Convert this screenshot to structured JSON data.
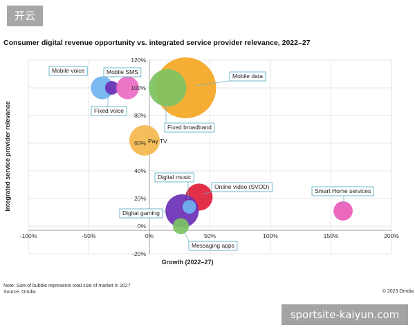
{
  "site_badge": "开云",
  "watermark": "sportsite-kaiyun.com",
  "footer": {
    "note": "Note: Size of bubble represents total size of market in 2027",
    "source": "Source: Omdia",
    "copyright": "© 2023 Omdia"
  },
  "chart_data": {
    "type": "scatter",
    "title": "Consumer digital revenue opportunity vs. integrated service provider relevance, 2022–27",
    "xlabel": "Growth (2022–27)",
    "ylabel": "Integrated service provider relevance",
    "xlim": [
      -100,
      200
    ],
    "ylim": [
      -20,
      120
    ],
    "x_ticks": [
      -100,
      -50,
      0,
      50,
      100,
      150,
      200
    ],
    "y_ticks": [
      -20,
      0,
      20,
      40,
      60,
      80,
      100,
      120
    ],
    "tick_suffix": "%",
    "grid": true,
    "points": [
      {
        "name": "Mobile data",
        "x": 30,
        "y": 100,
        "size": 100,
        "color": "#f5a623"
      },
      {
        "name": "Fixed broadband",
        "x": 15,
        "y": 100,
        "size": 38,
        "color": "#7dc363"
      },
      {
        "name": "Mobile voice",
        "x": -39,
        "y": 100,
        "size": 14,
        "color": "#6fb3f0"
      },
      {
        "name": "Fixed voice",
        "x": -31,
        "y": 100,
        "size": 5,
        "color": "#6a2fb5"
      },
      {
        "name": "Mobile SMS",
        "x": -18,
        "y": 100,
        "size": 14,
        "color": "#ea6bc3"
      },
      {
        "name": "Pay TV",
        "x": -4,
        "y": 62,
        "size": 25,
        "color": "#f5b94d"
      },
      {
        "name": "Online video (SVOD)",
        "x": 41,
        "y": 21,
        "size": 20,
        "color": "#e01e3a"
      },
      {
        "name": "Digital gaming",
        "x": 27,
        "y": 11,
        "size": 30,
        "color": "#6a2fb5"
      },
      {
        "name": "Digital music",
        "x": 33,
        "y": 14,
        "size": 5,
        "color": "#6fb3f0"
      },
      {
        "name": "Messaging apps",
        "x": 26,
        "y": 0,
        "size": 7,
        "color": "#7dc363"
      },
      {
        "name": "Smart Home services",
        "x": 160,
        "y": 11,
        "size": 10,
        "color": "#ea5bb8"
      }
    ],
    "annotations": [
      {
        "text": "Mobile voice",
        "target": "Mobile voice"
      },
      {
        "text": "Mobile SMS",
        "target": "Mobile SMS"
      },
      {
        "text": "Mobile data",
        "target": "Mobile data"
      },
      {
        "text": "Fixed voice",
        "target": "Fixed voice"
      },
      {
        "text": "Fixed broadband",
        "target": "Fixed broadband"
      },
      {
        "text": "Pay TV",
        "target": "Pay TV"
      },
      {
        "text": "Digital music",
        "target": "Digital music"
      },
      {
        "text": "Online video (SVOD)",
        "target": "Online video (SVOD)"
      },
      {
        "text": "Digital gaming",
        "target": "Digital gaming"
      },
      {
        "text": "Messaging apps",
        "target": "Messaging apps"
      },
      {
        "text": "Smart Home services",
        "target": "Smart Home services"
      }
    ]
  }
}
